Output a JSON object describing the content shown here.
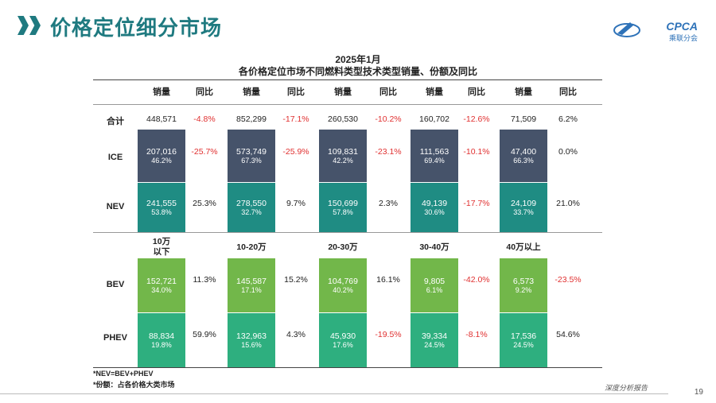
{
  "header": {
    "title": "价格定位细分市场",
    "logo_text": "CPCA",
    "logo_sub": "乘联分会"
  },
  "subtitle": {
    "line1": "2025年1月",
    "line2": "各价格定位市场不同燃料类型技术类型销量、份额及同比"
  },
  "columns": {
    "sales": "销量",
    "yoy": "同比"
  },
  "segments": [
    {
      "label_l1": "10万",
      "label_l2": "以下"
    },
    {
      "label_l1": "10-20万",
      "label_l2": ""
    },
    {
      "label_l1": "20-30万",
      "label_l2": ""
    },
    {
      "label_l1": "30-40万",
      "label_l2": ""
    },
    {
      "label_l1": "40万以上",
      "label_l2": ""
    }
  ],
  "rows": {
    "total": {
      "label": "合计",
      "values": [
        {
          "sales": "448,571",
          "yoy": "-4.8%"
        },
        {
          "sales": "852,299",
          "yoy": "-17.1%"
        },
        {
          "sales": "260,530",
          "yoy": "-10.2%"
        },
        {
          "sales": "160,702",
          "yoy": "-12.6%"
        },
        {
          "sales": "71,509",
          "yoy": "6.2%"
        }
      ]
    },
    "ice": {
      "label": "ICE",
      "values": [
        {
          "sales": "207,016",
          "share": "46.2%",
          "yoy": "-25.7%"
        },
        {
          "sales": "573,749",
          "share": "67.3%",
          "yoy": "-25.9%"
        },
        {
          "sales": "109,831",
          "share": "42.2%",
          "yoy": "-23.1%"
        },
        {
          "sales": "111,563",
          "share": "69.4%",
          "yoy": "-10.1%"
        },
        {
          "sales": "47,400",
          "share": "66.3%",
          "yoy": "0.0%"
        }
      ]
    },
    "nev": {
      "label": "NEV",
      "values": [
        {
          "sales": "241,555",
          "share": "53.8%",
          "yoy": "25.3%"
        },
        {
          "sales": "278,550",
          "share": "32.7%",
          "yoy": "9.7%"
        },
        {
          "sales": "150,699",
          "share": "57.8%",
          "yoy": "2.3%"
        },
        {
          "sales": "49,139",
          "share": "30.6%",
          "yoy": "-17.7%"
        },
        {
          "sales": "24,109",
          "share": "33.7%",
          "yoy": "21.0%"
        }
      ]
    },
    "bev": {
      "label": "BEV",
      "values": [
        {
          "sales": "152,721",
          "share": "34.0%",
          "yoy": "11.3%"
        },
        {
          "sales": "145,587",
          "share": "17.1%",
          "yoy": "15.2%"
        },
        {
          "sales": "104,769",
          "share": "40.2%",
          "yoy": "16.1%"
        },
        {
          "sales": "9,805",
          "share": "6.1%",
          "yoy": "-42.0%"
        },
        {
          "sales": "6,573",
          "share": "9.2%",
          "yoy": "-23.5%"
        }
      ]
    },
    "phev": {
      "label": "PHEV",
      "values": [
        {
          "sales": "88,834",
          "share": "19.8%",
          "yoy": "59.9%"
        },
        {
          "sales": "132,963",
          "share": "15.6%",
          "yoy": "4.3%"
        },
        {
          "sales": "45,930",
          "share": "17.6%",
          "yoy": "-19.5%"
        },
        {
          "sales": "39,334",
          "share": "24.5%",
          "yoy": "-8.1%"
        },
        {
          "sales": "17,536",
          "share": "24.5%",
          "yoy": "54.6%"
        }
      ]
    }
  },
  "notes": {
    "n1": "*NEV=BEV+PHEV",
    "n2": "*份额：占各价格大类市场"
  },
  "footer": {
    "report": "深度分析报告",
    "page": "19"
  },
  "colors": {
    "brand": "#1f7a80",
    "ice": "#46536a",
    "nev": "#1f8c83",
    "bev": "#72b74a",
    "phev": "#2eaf7f",
    "negative": "#e03030"
  }
}
